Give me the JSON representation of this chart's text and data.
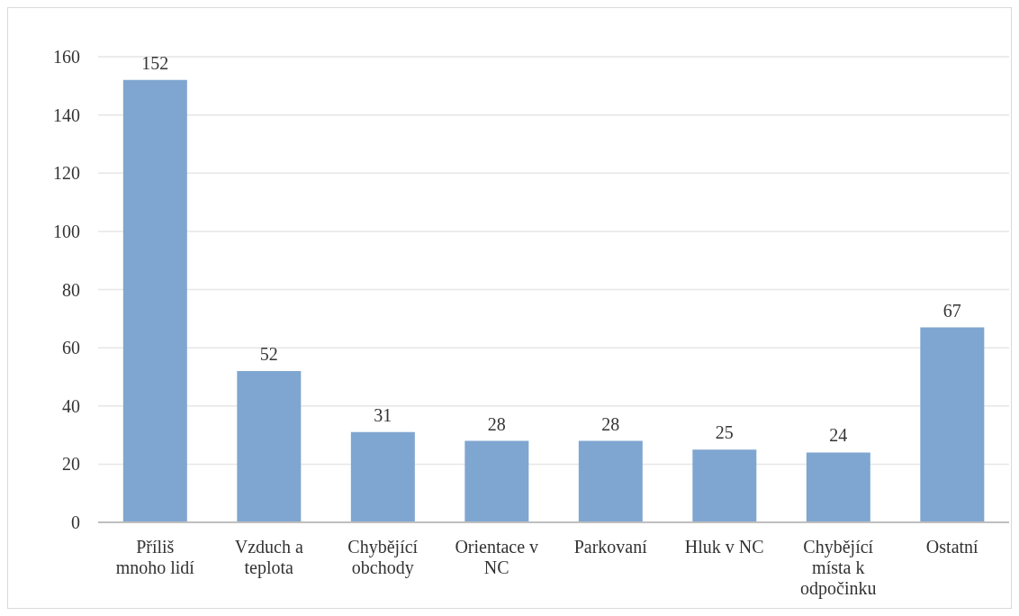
{
  "chart_data": {
    "type": "bar",
    "categories": [
      "Příliš mnoho lidí",
      "Vzduch a teplota",
      "Chybějící obchody",
      "Orientace v NC",
      "Parkovaní",
      "Hluk v NC",
      "Chybějící místa k odpočinku",
      "Ostatní"
    ],
    "values": [
      152,
      52,
      31,
      28,
      28,
      25,
      24,
      67
    ],
    "color": "#7fa6d0",
    "ylim": [
      0,
      160
    ],
    "yticks": [
      0,
      20,
      40,
      60,
      80,
      100,
      120,
      140,
      160
    ],
    "grid": "y",
    "data_labels": true,
    "legend": false
  }
}
